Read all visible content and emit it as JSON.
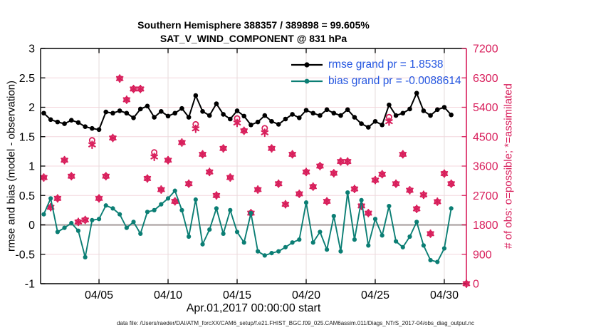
{
  "title": {
    "line1": "Southern Hemisphere 388357 / 389898 = 99.605%",
    "line2": "SAT_V_WIND_COMPONENT @ 831 hPa"
  },
  "legend": {
    "items": [
      {
        "series": "rmse",
        "label": "rmse grand pr = 1.8538"
      },
      {
        "series": "bias",
        "label": "bias grand pr = -0.0088614"
      }
    ]
  },
  "axes": {
    "x": {
      "label": "Apr.01,2017 00:00:00 start",
      "ticks": [
        {
          "v": 5,
          "label": "04/05"
        },
        {
          "v": 10,
          "label": "04/10"
        },
        {
          "v": 15,
          "label": "04/15"
        },
        {
          "v": 20,
          "label": "04/20"
        },
        {
          "v": 25,
          "label": "04/25"
        },
        {
          "v": 30,
          "label": "04/30"
        }
      ],
      "lim": [
        0.77,
        31.6
      ]
    },
    "y_left": {
      "label": "rmse and bias (model - observation)",
      "ticks": [
        {
          "v": 3,
          "label": "3"
        },
        {
          "v": 2.5,
          "label": "2.5"
        },
        {
          "v": 2,
          "label": "2"
        },
        {
          "v": 1.5,
          "label": "1.5"
        },
        {
          "v": 1,
          "label": "1"
        },
        {
          "v": 0.5,
          "label": "0.5"
        },
        {
          "v": 0,
          "label": "0"
        },
        {
          "v": -0.5,
          "label": "-0.5"
        },
        {
          "v": -1,
          "label": "-1"
        }
      ],
      "lim": [
        -1,
        3
      ]
    },
    "y_right": {
      "label": "# of obs: o=possible; *=assimilated",
      "ticks": [
        {
          "v": 7200,
          "label": "7200"
        },
        {
          "v": 6300,
          "label": "6300"
        },
        {
          "v": 5400,
          "label": "5400"
        },
        {
          "v": 4500,
          "label": "4500"
        },
        {
          "v": 3600,
          "label": "3600"
        },
        {
          "v": 2700,
          "label": "2700"
        },
        {
          "v": 1800,
          "label": "1800"
        },
        {
          "v": 900,
          "label": "900"
        },
        {
          "v": 0,
          "label": "0"
        }
      ],
      "lim": [
        0,
        7200
      ]
    }
  },
  "footer": {
    "text": "data file: /Users/raeder/DAI/ATM_forcXX/CAM6_setup/f.e21.FHIST_BGC.f09_025.CAM6assim.011/Diags_NTrS_2017-04/obs_diag_output.nc"
  },
  "colors": {
    "rmse": "#000000",
    "bias": "#0b7e74",
    "obs": "#d81e5b",
    "legend_text": "#2456e0",
    "grid_h": "#f4d7dd",
    "grid_v": "#e5dbdb",
    "zero_line": "#b5aeae",
    "axis_left": "#000000",
    "axis_right": "#d81e5b",
    "background": "#ffffff"
  },
  "chart_data": {
    "type": "line",
    "title": "Southern Hemisphere 388357 / 389898 = 99.605%",
    "subtitle": "SAT_V_WIND_COMPONENT @ 831 hPa",
    "xlabel": "Apr.01,2017 00:00:00 start",
    "ylabel_left": "rmse and bias (model - observation)",
    "ylabel_right": "# of obs: o=possible; *=assimilated",
    "x_unit": "day of April 2017, 12-hourly bins",
    "xlim": [
      0.77,
      31.6
    ],
    "ylim_left": [
      -1,
      3
    ],
    "ylim_right": [
      0,
      7200
    ],
    "grid": true,
    "legend_position": "top-right-inside",
    "x": [
      1,
      1.5,
      2,
      2.5,
      3,
      3.5,
      4,
      4.5,
      5,
      5.5,
      6,
      6.5,
      7,
      7.5,
      8,
      8.5,
      9,
      9.5,
      10,
      10.5,
      11,
      11.5,
      12,
      12.5,
      13,
      13.5,
      14,
      14.5,
      15,
      15.5,
      16,
      16.5,
      17,
      17.5,
      18,
      18.5,
      19,
      19.5,
      20,
      20.5,
      21,
      21.5,
      22,
      22.5,
      23,
      23.5,
      24,
      24.5,
      25,
      25.5,
      26,
      26.5,
      27,
      27.5,
      28,
      28.5,
      29,
      29.5,
      30,
      30.5,
      31.6
    ],
    "series": [
      {
        "name": "rmse",
        "axis": "left",
        "style": "line+filled-circle",
        "grand_value": 1.8538,
        "values": [
          1.9,
          1.79,
          1.75,
          1.72,
          1.78,
          1.74,
          1.67,
          1.64,
          1.62,
          1.92,
          1.9,
          1.94,
          1.9,
          1.82,
          1.97,
          2.02,
          1.83,
          1.93,
          1.85,
          1.9,
          1.98,
          1.83,
          2.2,
          1.93,
          1.86,
          2.06,
          1.88,
          1.8,
          1.94,
          1.85,
          1.7,
          1.75,
          1.86,
          1.76,
          1.71,
          1.8,
          1.88,
          1.82,
          1.95,
          1.9,
          1.86,
          1.96,
          1.9,
          1.86,
          1.96,
          1.83,
          1.72,
          1.66,
          1.76,
          1.7,
          2.04,
          1.86,
          1.9,
          1.97,
          2.24,
          1.94,
          1.86,
          1.96,
          2.0,
          1.87,
          null
        ]
      },
      {
        "name": "bias",
        "axis": "left",
        "style": "line+filled-circle",
        "grand_value": -0.0088614,
        "values": [
          0.18,
          0.45,
          -0.12,
          -0.05,
          0.03,
          -0.1,
          -0.55,
          0.08,
          0.1,
          0.33,
          0.28,
          0.18,
          -0.05,
          0.05,
          -0.15,
          0.22,
          0.25,
          0.35,
          0.45,
          0.58,
          0.25,
          -0.2,
          0.43,
          -0.33,
          -0.08,
          0.28,
          -0.15,
          0.25,
          -0.12,
          -0.3,
          0.2,
          -0.45,
          -0.52,
          -0.48,
          -0.45,
          -0.38,
          -0.3,
          -0.25,
          0.38,
          -0.3,
          -0.12,
          -0.42,
          0.15,
          -0.45,
          0.55,
          -0.25,
          0.42,
          -0.35,
          0.1,
          -0.18,
          0.32,
          -0.28,
          -0.38,
          -0.2,
          0.05,
          -0.35,
          -0.6,
          -0.63,
          -0.4,
          0.28,
          null
        ]
      },
      {
        "name": "obs_possible",
        "axis": "right",
        "style": "open-circle-marker",
        "values": [
          3250,
          2340,
          2610,
          3780,
          3290,
          1890,
          1950,
          4390,
          2610,
          3290,
          4460,
          6280,
          5630,
          5960,
          5960,
          3220,
          4020,
          2880,
          3780,
          2520,
          4320,
          3060,
          4880,
          3960,
          3420,
          2700,
          4140,
          3250,
          5060,
          4680,
          2160,
          2880,
          4760,
          4140,
          3060,
          2430,
          3960,
          2750,
          3420,
          2970,
          3600,
          2520,
          3380,
          3740,
          3740,
          2900,
          2380,
          2160,
          3170,
          3350,
          5100,
          3060,
          3960,
          2860,
          2290,
          2720,
          1530,
          2510,
          3370,
          3060,
          0
        ]
      },
      {
        "name": "obs_assimilated",
        "axis": "right",
        "style": "asterisk-marker",
        "values": [
          3250,
          2340,
          2610,
          3780,
          3290,
          1890,
          1950,
          4250,
          2610,
          3290,
          4460,
          6280,
          5630,
          5960,
          5960,
          3220,
          3880,
          2880,
          3780,
          2520,
          4320,
          3060,
          4740,
          3960,
          3420,
          2700,
          4140,
          3250,
          4920,
          4680,
          2160,
          2880,
          4620,
          4140,
          3060,
          2430,
          3960,
          2750,
          3420,
          2970,
          3600,
          2520,
          3380,
          3740,
          3740,
          2900,
          2380,
          2160,
          3170,
          3350,
          4960,
          3060,
          3960,
          2860,
          2290,
          2720,
          1530,
          2510,
          3370,
          3060,
          0
        ]
      }
    ]
  }
}
